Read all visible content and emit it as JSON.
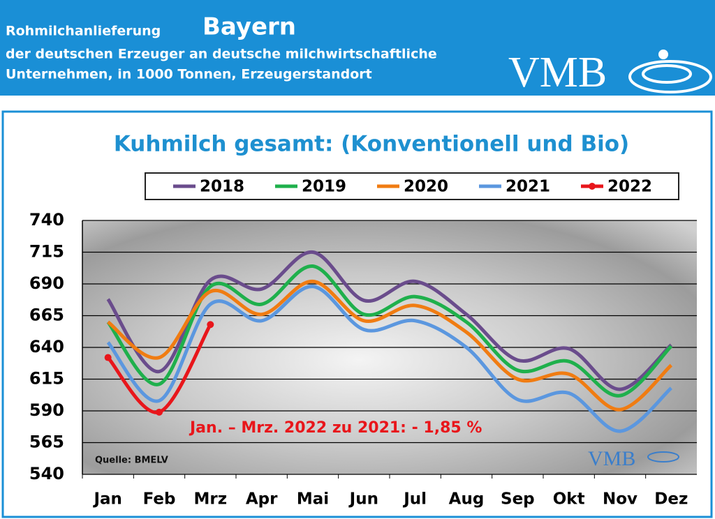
{
  "header": {
    "title": "Rohmilchanlieferung",
    "region": "Bayern",
    "subtitle_lines": [
      "der deutschen Erzeuger an deutsche milchwirtschaftliche",
      "Unternehmen, in 1000 Tonnen, Erzeugerstandort"
    ],
    "logo": "VMB"
  },
  "chart_data": {
    "type": "line",
    "title": "Kuhmilch gesamt: (Konventionell und Bio)",
    "categories": [
      "Jan",
      "Feb",
      "Mrz",
      "Apr",
      "Mai",
      "Jun",
      "Jul",
      "Aug",
      "Sep",
      "Okt",
      "Nov",
      "Dez"
    ],
    "series": [
      {
        "name": "2018",
        "color": "#6a4c8c",
        "values": [
          678,
          621,
          693,
          686,
          715,
          677,
          692,
          666,
          630,
          639,
          607,
          642
        ]
      },
      {
        "name": "2019",
        "color": "#1fb04c",
        "values": [
          660,
          611,
          688,
          674,
          704,
          666,
          680,
          660,
          622,
          629,
          602,
          641
        ]
      },
      {
        "name": "2020",
        "color": "#f07c12",
        "values": [
          660,
          632,
          684,
          666,
          692,
          661,
          673,
          652,
          615,
          619,
          591,
          626
        ]
      },
      {
        "name": "2021",
        "color": "#5b97df",
        "values": [
          644,
          598,
          674,
          661,
          688,
          654,
          661,
          640,
          599,
          604,
          574,
          608
        ]
      },
      {
        "name": "2022",
        "color": "#e8161b",
        "markers": true,
        "values": [
          632,
          589,
          658,
          null,
          null,
          null,
          null,
          null,
          null,
          null,
          null,
          null
        ]
      }
    ],
    "ylim": [
      540,
      740
    ],
    "yticks": [
      540,
      565,
      590,
      615,
      640,
      665,
      690,
      715,
      740
    ],
    "grid": true,
    "annotation": "Jan. – Mrz. 2022 zu 2021: - 1,85 %",
    "source": "Quelle: BMELV"
  }
}
